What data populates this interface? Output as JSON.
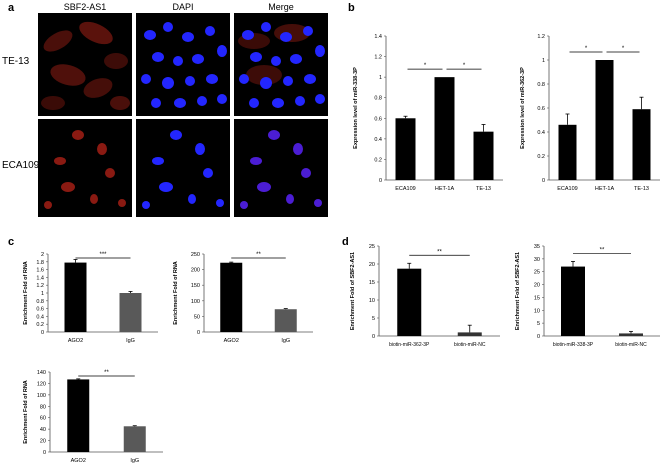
{
  "panels": {
    "a": "a",
    "b": "b",
    "c": "c",
    "d": "d"
  },
  "microscopy": {
    "columns": [
      "SBF2-AS1",
      "DAPI",
      "Merge"
    ],
    "rows": [
      "TE-13",
      "ECA109"
    ],
    "colors": {
      "sbf2": "#8a1a12",
      "dapi": "#1e22ff",
      "background": "#000000"
    }
  },
  "chart_data": [
    {
      "id": "b1",
      "type": "bar",
      "panel": "b",
      "ylabel": "Expression level of miR-338-3P",
      "categories": [
        "ECA109",
        "HET-1A",
        "TE-13"
      ],
      "values": [
        0.6,
        1.0,
        0.47
      ],
      "errors": [
        0.02,
        0.0,
        0.07
      ],
      "ylim": [
        0,
        1.4
      ],
      "yticks": [
        0,
        0.2,
        0.4,
        0.6,
        0.8,
        1,
        1.2,
        1.4
      ],
      "ytick_labels": [
        "0",
        "0.2",
        "0.4",
        "0.6",
        "0.8",
        "1",
        "1.2",
        "1.4"
      ],
      "bar_colors": [
        "#000000",
        "#000000",
        "#000000"
      ],
      "significance": [
        {
          "label": "*",
          "from": 0,
          "to": 1
        },
        {
          "label": "*",
          "from": 1,
          "to": 2
        }
      ]
    },
    {
      "id": "b2",
      "type": "bar",
      "panel": "b",
      "ylabel": "Expression level of miR-362-3P",
      "categories": [
        "ECA109",
        "HET-1A",
        "TE-13"
      ],
      "values": [
        0.46,
        1.0,
        0.59
      ],
      "errors": [
        0.09,
        0.0,
        0.1
      ],
      "ylim": [
        0,
        1.2
      ],
      "yticks": [
        0,
        0.2,
        0.4,
        0.6,
        0.8,
        1,
        1.2
      ],
      "ytick_labels": [
        "0",
        "0.2",
        "0.4",
        "0.6",
        "0.8",
        "1",
        "1.2"
      ],
      "bar_colors": [
        "#000000",
        "#000000",
        "#000000"
      ],
      "significance": [
        {
          "label": "*",
          "from": 0,
          "to": 1
        },
        {
          "label": "*",
          "from": 1,
          "to": 2
        }
      ]
    },
    {
      "id": "c1",
      "type": "bar",
      "panel": "c",
      "ylabel": "Enrichment Fold of RNA",
      "categories": [
        "AGO2",
        "IgG"
      ],
      "values": [
        1.78,
        1.0
      ],
      "errors": [
        0.08,
        0.04
      ],
      "ylim": [
        0,
        2
      ],
      "yticks": [
        0,
        0.2,
        0.4,
        0.6,
        0.8,
        1,
        1.2,
        1.4,
        1.6,
        1.8,
        2
      ],
      "ytick_labels": [
        "0",
        "0.2",
        "0.4",
        "0.6",
        "0.8",
        "1",
        "1.2",
        "1.4",
        "1.6",
        "1.8",
        "2"
      ],
      "bar_colors": [
        "#000000",
        "#595959"
      ],
      "significance": [
        {
          "label": "***",
          "from": 0,
          "to": 1
        }
      ]
    },
    {
      "id": "c2",
      "type": "bar",
      "panel": "c",
      "ylabel": "Enrichment Fold of RNA",
      "categories": [
        "AGO2",
        "IgG"
      ],
      "values": [
        222,
        73
      ],
      "errors": [
        2,
        2
      ],
      "ylim": [
        0,
        250
      ],
      "yticks": [
        0,
        50,
        100,
        150,
        200,
        250
      ],
      "ytick_labels": [
        "0",
        "50",
        "100",
        "150",
        "200",
        "250"
      ],
      "bar_colors": [
        "#000000",
        "#595959"
      ],
      "significance": [
        {
          "label": "**",
          "from": 0,
          "to": 1
        }
      ]
    },
    {
      "id": "c3",
      "type": "bar",
      "panel": "c",
      "ylabel": "Enrichment Fold of RNA",
      "categories": [
        "AGO2",
        "IgG"
      ],
      "values": [
        127,
        45
      ],
      "errors": [
        1,
        1
      ],
      "ylim": [
        0,
        140
      ],
      "yticks": [
        0,
        20,
        40,
        60,
        80,
        100,
        120,
        140
      ],
      "ytick_labels": [
        "0",
        "20",
        "40",
        "60",
        "80",
        "100",
        "120",
        "140"
      ],
      "bar_colors": [
        "#000000",
        "#595959"
      ],
      "significance": [
        {
          "label": "**",
          "from": 0,
          "to": 1
        }
      ]
    },
    {
      "id": "d1",
      "type": "bar",
      "panel": "d",
      "ylabel": "Enrichment Fold of SBF2-AS1",
      "categories": [
        "biotin-miR-362-3P",
        "biotin-miR-NC"
      ],
      "values": [
        18.7,
        1.0
      ],
      "errors": [
        1.5,
        2.0
      ],
      "ylim": [
        0,
        25
      ],
      "yticks": [
        0,
        5,
        10,
        15,
        20,
        25
      ],
      "ytick_labels": [
        "0",
        "5",
        "10",
        "15",
        "20",
        "25"
      ],
      "bar_colors": [
        "#000000",
        "#333333"
      ],
      "significance": [
        {
          "label": "**",
          "from": 0,
          "to": 1
        }
      ]
    },
    {
      "id": "d2",
      "type": "bar",
      "panel": "d",
      "ylabel": "Enrichment Fold of SBF2-AS1",
      "categories": [
        "biotin-miR-338-3P",
        "biotin-miR-NC"
      ],
      "values": [
        27,
        1.0
      ],
      "errors": [
        2,
        0.8
      ],
      "ylim": [
        0,
        35
      ],
      "yticks": [
        0,
        5,
        10,
        15,
        20,
        25,
        30,
        35
      ],
      "ytick_labels": [
        "0",
        "5",
        "10",
        "15",
        "20",
        "25",
        "30",
        "35"
      ],
      "bar_colors": [
        "#000000",
        "#333333"
      ],
      "significance": [
        {
          "label": "**",
          "from": 0,
          "to": 1
        }
      ]
    }
  ]
}
